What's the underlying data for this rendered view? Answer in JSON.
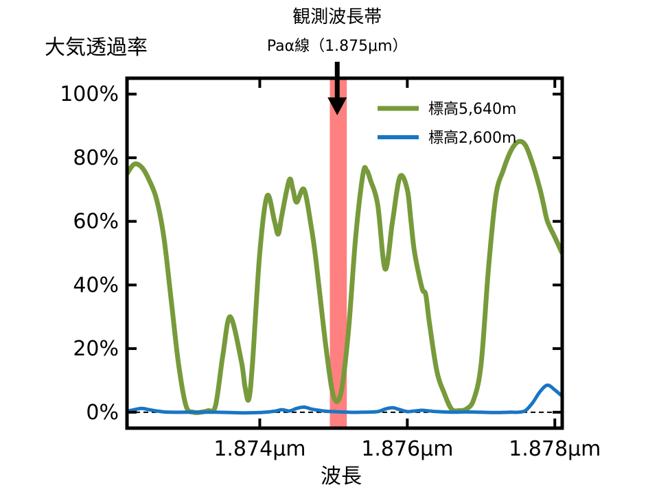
{
  "chart_data": {
    "type": "line",
    "title": "",
    "ylabel": "大気透過率",
    "xlabel": "波長",
    "xlim": [
      1.8722,
      1.8781
    ],
    "ylim": [
      -0.05,
      1.05
    ],
    "x_ticks": [
      {
        "value": 1.874,
        "label": "1.874μm"
      },
      {
        "value": 1.876,
        "label": "1.876μm"
      },
      {
        "value": 1.878,
        "label": "1.878μm"
      }
    ],
    "y_ticks": [
      {
        "value": 0.0,
        "label": "0%"
      },
      {
        "value": 0.2,
        "label": "20%"
      },
      {
        "value": 0.4,
        "label": "40%"
      },
      {
        "value": 0.6,
        "label": "60%"
      },
      {
        "value": 0.8,
        "label": "80%"
      },
      {
        "value": 1.0,
        "label": "100%"
      }
    ],
    "zero_line": true,
    "grid": false,
    "legend_position": "top-right",
    "annotation": {
      "line1": "観測波長帯",
      "line2": "Paα線（1.875μm）",
      "band": [
        1.87495,
        1.87518
      ],
      "band_color": "#ff8080",
      "arrow_x": 1.87505
    },
    "series": [
      {
        "name": "標高5,640m",
        "color": "#779a3b",
        "x": [
          1.8722,
          1.8723,
          1.8724,
          1.8725,
          1.8726,
          1.8727,
          1.8728,
          1.8729,
          1.873,
          1.8731,
          1.8732,
          1.8733,
          1.8734,
          1.8735,
          1.8736,
          1.87375,
          1.8738,
          1.87385,
          1.8739,
          1.874,
          1.8741,
          1.8742,
          1.87425,
          1.8743,
          1.8744,
          1.87445,
          1.8745,
          1.8746,
          1.8747,
          1.87475,
          1.8748,
          1.8749,
          1.875,
          1.8751,
          1.8752,
          1.8753,
          1.8754,
          1.87545,
          1.8755,
          1.8756,
          1.8757,
          1.8758,
          1.8759,
          1.876,
          1.87605,
          1.8761,
          1.8762,
          1.87625,
          1.8763,
          1.8764,
          1.8765,
          1.8766,
          1.8767,
          1.8768,
          1.8769,
          1.877,
          1.8771,
          1.8772,
          1.8773,
          1.8774,
          1.8775,
          1.8776,
          1.8777,
          1.8778,
          1.87785,
          1.8779,
          1.878,
          1.8781
        ],
        "values": [
          0.75,
          0.78,
          0.77,
          0.73,
          0.67,
          0.55,
          0.35,
          0.15,
          0.02,
          0.0,
          0.0,
          0.005,
          0.02,
          0.18,
          0.3,
          0.16,
          0.08,
          0.04,
          0.15,
          0.5,
          0.68,
          0.6,
          0.56,
          0.62,
          0.73,
          0.7,
          0.66,
          0.7,
          0.58,
          0.5,
          0.4,
          0.2,
          0.05,
          0.06,
          0.25,
          0.55,
          0.75,
          0.76,
          0.73,
          0.65,
          0.45,
          0.6,
          0.74,
          0.7,
          0.6,
          0.5,
          0.39,
          0.37,
          0.28,
          0.13,
          0.06,
          0.01,
          0.005,
          0.01,
          0.04,
          0.15,
          0.45,
          0.68,
          0.76,
          0.82,
          0.85,
          0.84,
          0.78,
          0.7,
          0.65,
          0.6,
          0.55,
          0.5
        ]
      },
      {
        "name": "標高2,600m",
        "color": "#1a75c4",
        "x": [
          1.8722,
          1.8723,
          1.8724,
          1.8725,
          1.8726,
          1.8727,
          1.8728,
          1.873,
          1.8732,
          1.8734,
          1.8736,
          1.8738,
          1.874,
          1.8742,
          1.8743,
          1.8744,
          1.8745,
          1.8746,
          1.8747,
          1.8748,
          1.8749,
          1.875,
          1.8752,
          1.8754,
          1.8756,
          1.8757,
          1.8758,
          1.8759,
          1.876,
          1.8761,
          1.8762,
          1.8763,
          1.8764,
          1.8766,
          1.8768,
          1.877,
          1.8772,
          1.8774,
          1.8775,
          1.8776,
          1.8777,
          1.8778,
          1.8779,
          1.878,
          1.8781
        ],
        "values": [
          0.003,
          0.008,
          0.012,
          0.008,
          0.004,
          0.001,
          0.0,
          0.0,
          0.0,
          0.0,
          -0.001,
          -0.002,
          -0.001,
          0.003,
          0.008,
          0.004,
          0.012,
          0.016,
          0.01,
          0.006,
          0.003,
          0.002,
          0.0,
          0.0,
          0.002,
          0.01,
          0.014,
          0.008,
          0.002,
          0.004,
          0.006,
          0.004,
          0.002,
          0.0,
          0.001,
          0.0,
          -0.001,
          0.0,
          0.0,
          0.005,
          0.03,
          0.065,
          0.085,
          0.07,
          0.05
        ]
      }
    ]
  }
}
